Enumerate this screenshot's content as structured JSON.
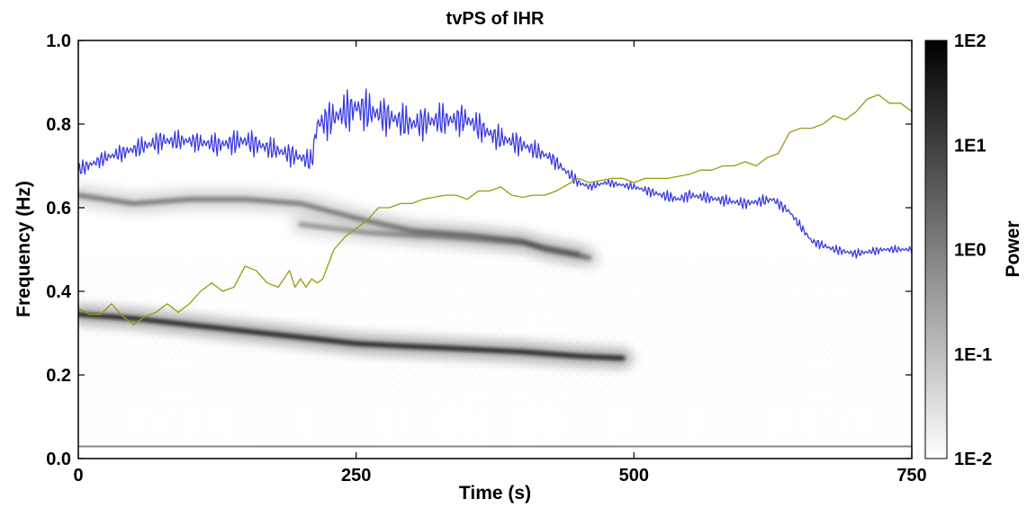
{
  "chart_data": {
    "type": "heatmap",
    "title": "tvPS of IHR",
    "xlabel": "Time (s)",
    "ylabel": "Frequency (Hz)",
    "xlim": [
      0,
      750
    ],
    "ylim": [
      0,
      1
    ],
    "x_ticks": [
      0,
      250,
      500,
      750
    ],
    "x_tick_labels": [
      "0",
      "250",
      "500",
      "750"
    ],
    "y_ticks": [
      0,
      0.2,
      0.4,
      0.6,
      0.8,
      1.0
    ],
    "y_tick_labels": [
      "0.0",
      "0.2",
      "0.4",
      "0.6",
      "0.8",
      "1.0"
    ],
    "colorbar": {
      "label": "Power",
      "scale": "log",
      "ticks": [
        "1E-2",
        "1E-1",
        "1E0",
        "1E1",
        "1E2"
      ],
      "colors": [
        "#ffffff",
        "#000000"
      ]
    },
    "ridges": [
      {
        "points": [
          [
            0,
            0.345
          ],
          [
            50,
            0.335
          ],
          [
            100,
            0.32
          ],
          [
            150,
            0.305
          ],
          [
            200,
            0.29
          ],
          [
            250,
            0.275
          ],
          [
            300,
            0.268
          ],
          [
            350,
            0.262
          ],
          [
            400,
            0.255
          ],
          [
            450,
            0.245
          ],
          [
            490,
            0.24
          ]
        ],
        "strength": 0.85
      },
      {
        "points": [
          [
            0,
            0.63
          ],
          [
            50,
            0.61
          ],
          [
            100,
            0.62
          ],
          [
            150,
            0.62
          ],
          [
            200,
            0.61
          ],
          [
            250,
            0.575
          ],
          [
            300,
            0.545
          ],
          [
            350,
            0.535
          ],
          [
            400,
            0.52
          ],
          [
            420,
            0.5
          ],
          [
            460,
            0.48
          ]
        ],
        "strength": 0.45
      },
      {
        "points": [
          [
            200,
            0.56
          ],
          [
            260,
            0.54
          ],
          [
            330,
            0.53
          ],
          [
            400,
            0.515
          ],
          [
            450,
            0.49
          ]
        ],
        "strength": 0.35
      },
      {
        "points": [
          [
            0,
            0.03
          ],
          [
            150,
            0.03
          ],
          [
            300,
            0.028
          ],
          [
            500,
            0.03
          ],
          [
            750,
            0.03
          ]
        ],
        "strength": 0.5
      }
    ],
    "series": [
      {
        "color": "#3a3ae0",
        "x": [
          0,
          25,
          50,
          75,
          100,
          125,
          150,
          175,
          200,
          210,
          215,
          225,
          250,
          275,
          300,
          325,
          350,
          375,
          400,
          425,
          450,
          460,
          475,
          500,
          525,
          540,
          550,
          575,
          600,
          625,
          640,
          660,
          680,
          700,
          725,
          750
        ],
        "y": [
          0.69,
          0.72,
          0.74,
          0.76,
          0.76,
          0.75,
          0.76,
          0.74,
          0.72,
          0.71,
          0.8,
          0.81,
          0.84,
          0.82,
          0.8,
          0.81,
          0.81,
          0.77,
          0.75,
          0.72,
          0.66,
          0.65,
          0.66,
          0.65,
          0.63,
          0.62,
          0.63,
          0.62,
          0.61,
          0.62,
          0.59,
          0.52,
          0.5,
          0.49,
          0.5,
          0.5
        ],
        "oscillation": [
          0.02,
          0.02,
          0.025,
          0.03,
          0.025,
          0.03,
          0.035,
          0.03,
          0.03,
          0.03,
          0.05,
          0.05,
          0.06,
          0.05,
          0.045,
          0.045,
          0.04,
          0.035,
          0.03,
          0.02,
          0.015,
          0.01,
          0.01,
          0.01,
          0.015,
          0.015,
          0.015,
          0.015,
          0.015,
          0.015,
          0.012,
          0.012,
          0.012,
          0.012,
          0.01,
          0.01
        ]
      },
      {
        "color": "#9a9a10",
        "x": [
          0,
          10,
          20,
          30,
          40,
          50,
          60,
          70,
          80,
          90,
          100,
          110,
          120,
          130,
          140,
          150,
          160,
          170,
          180,
          190,
          195,
          200,
          205,
          210,
          215,
          220,
          230,
          240,
          250,
          260,
          270,
          280,
          290,
          300,
          310,
          320,
          330,
          340,
          350,
          360,
          370,
          380,
          390,
          400,
          410,
          420,
          430,
          440,
          450,
          460,
          470,
          480,
          490,
          500,
          510,
          520,
          530,
          540,
          550,
          560,
          570,
          580,
          590,
          600,
          610,
          620,
          630,
          640,
          650,
          660,
          670,
          680,
          690,
          700,
          710,
          720,
          730,
          740,
          750
        ],
        "y": [
          0.36,
          0.345,
          0.345,
          0.37,
          0.34,
          0.32,
          0.34,
          0.35,
          0.37,
          0.35,
          0.37,
          0.4,
          0.42,
          0.4,
          0.41,
          0.46,
          0.45,
          0.42,
          0.41,
          0.45,
          0.41,
          0.43,
          0.41,
          0.43,
          0.42,
          0.43,
          0.5,
          0.53,
          0.55,
          0.57,
          0.6,
          0.6,
          0.61,
          0.61,
          0.62,
          0.625,
          0.63,
          0.63,
          0.62,
          0.64,
          0.64,
          0.65,
          0.63,
          0.625,
          0.63,
          0.63,
          0.64,
          0.655,
          0.67,
          0.66,
          0.665,
          0.67,
          0.67,
          0.66,
          0.67,
          0.67,
          0.67,
          0.675,
          0.68,
          0.69,
          0.69,
          0.7,
          0.7,
          0.71,
          0.7,
          0.72,
          0.73,
          0.78,
          0.79,
          0.79,
          0.8,
          0.82,
          0.81,
          0.83,
          0.86,
          0.87,
          0.85,
          0.85,
          0.83
        ]
      }
    ]
  }
}
